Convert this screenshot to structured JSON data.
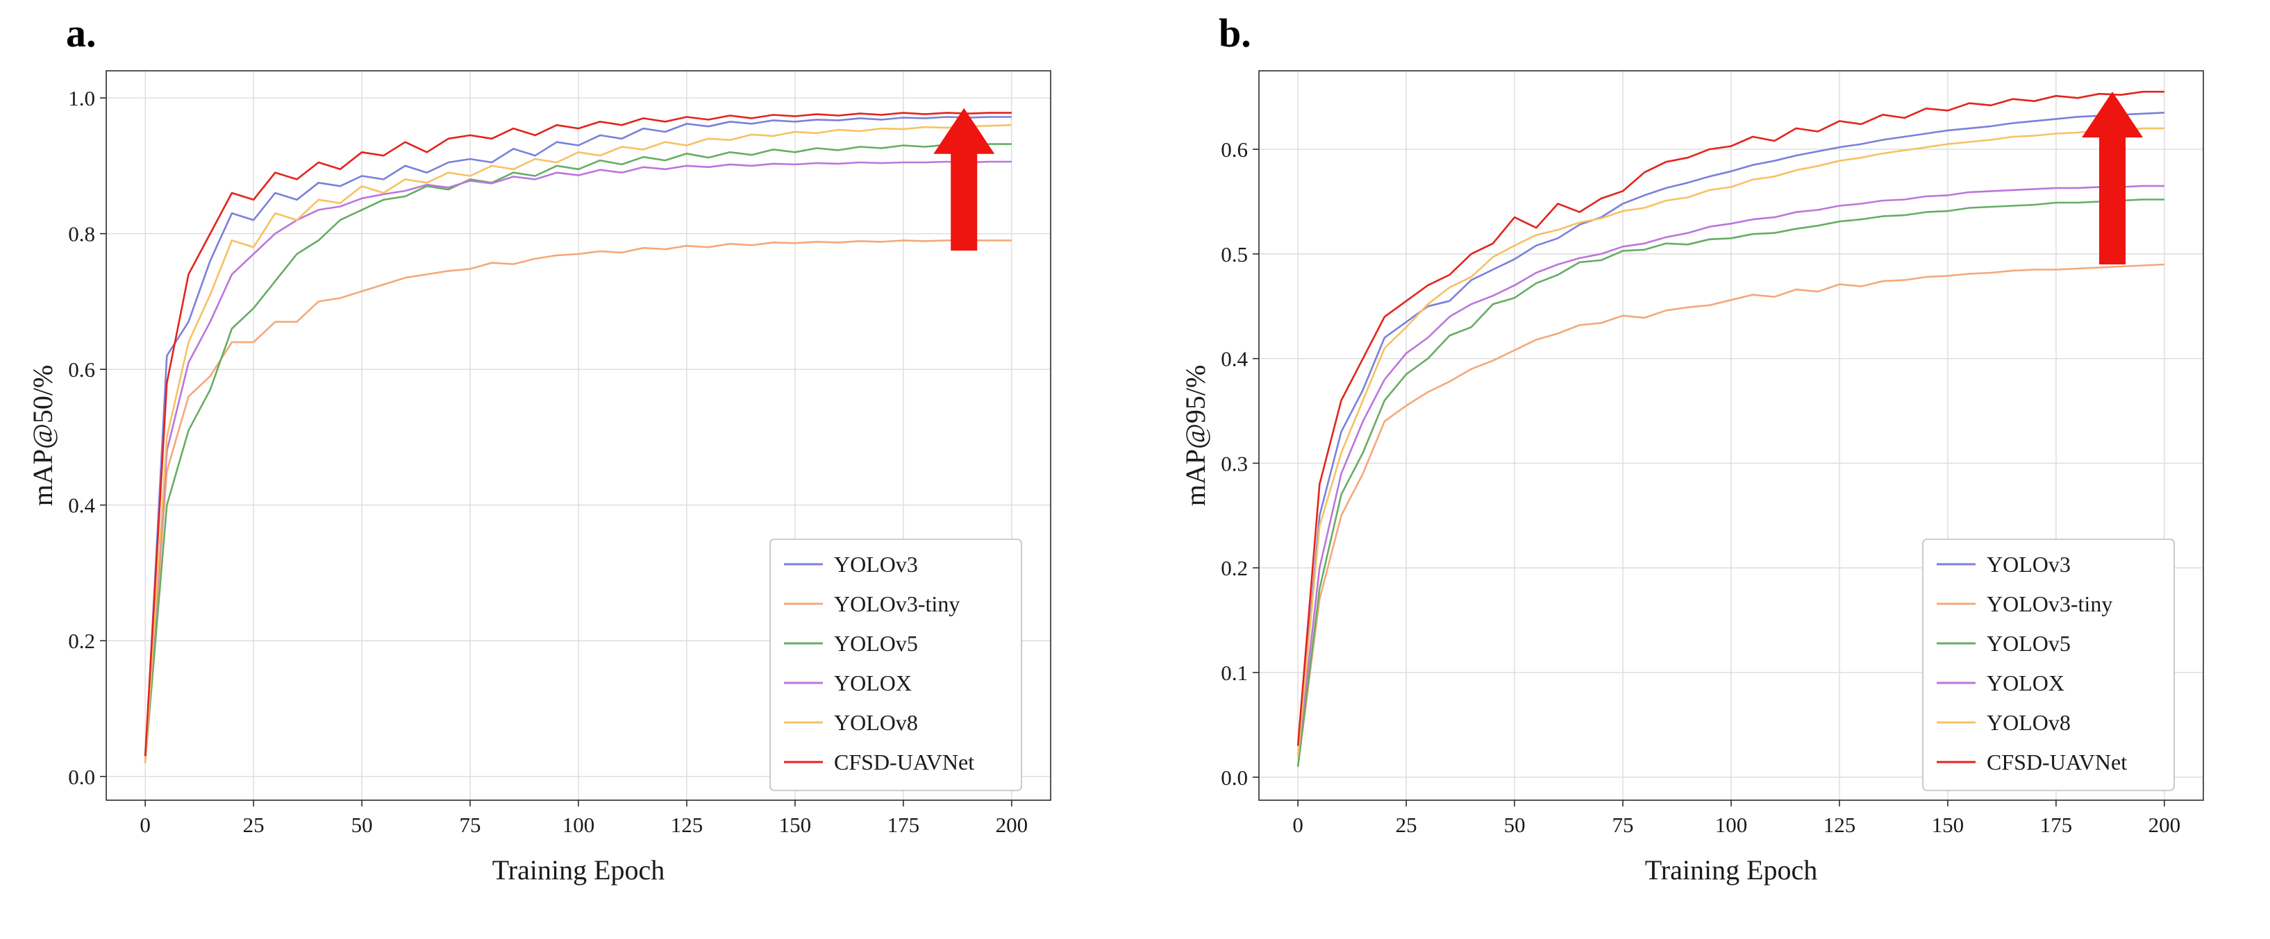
{
  "figure_title": "",
  "arrow_color": "#ee1410",
  "chart_data": [
    {
      "id": "a",
      "type": "line",
      "panel_label": "a.",
      "xlabel": "Training Epoch",
      "ylabel": "mAP@50/%",
      "xlim": [
        -9,
        209
      ],
      "ylim": [
        -0.035,
        1.04
      ],
      "xticks": [
        0,
        25,
        50,
        75,
        100,
        125,
        150,
        175,
        200
      ],
      "yticks": [
        0.0,
        0.2,
        0.4,
        0.6,
        0.8,
        1.0
      ],
      "grid": true,
      "legend_position": "lower right",
      "arrow": {
        "x": 189,
        "y_from": 0.775,
        "y_to": 0.985
      },
      "x": [
        0,
        5,
        10,
        15,
        20,
        25,
        30,
        35,
        40,
        45,
        50,
        55,
        60,
        65,
        70,
        75,
        80,
        85,
        90,
        95,
        100,
        105,
        110,
        115,
        120,
        125,
        130,
        135,
        140,
        145,
        150,
        155,
        160,
        165,
        170,
        175,
        180,
        185,
        190,
        195,
        200
      ],
      "series": [
        {
          "name": "YOLOv3",
          "color": "#7a80db",
          "values": [
            0.02,
            0.62,
            0.67,
            0.76,
            0.83,
            0.82,
            0.86,
            0.85,
            0.875,
            0.87,
            0.885,
            0.88,
            0.9,
            0.89,
            0.905,
            0.91,
            0.905,
            0.925,
            0.915,
            0.935,
            0.93,
            0.945,
            0.94,
            0.955,
            0.95,
            0.962,
            0.958,
            0.965,
            0.962,
            0.967,
            0.965,
            0.968,
            0.967,
            0.97,
            0.968,
            0.971,
            0.97,
            0.972,
            0.971,
            0.972,
            0.972
          ]
        },
        {
          "name": "YOLOv3-tiny",
          "color": "#f5a878",
          "values": [
            0.02,
            0.45,
            0.56,
            0.59,
            0.64,
            0.64,
            0.67,
            0.67,
            0.7,
            0.705,
            0.715,
            0.725,
            0.735,
            0.74,
            0.745,
            0.748,
            0.757,
            0.755,
            0.763,
            0.768,
            0.77,
            0.774,
            0.772,
            0.779,
            0.777,
            0.782,
            0.78,
            0.785,
            0.783,
            0.787,
            0.786,
            0.788,
            0.787,
            0.789,
            0.788,
            0.79,
            0.789,
            0.79,
            0.79,
            0.79,
            0.79
          ]
        },
        {
          "name": "YOLOv5",
          "color": "#66ad64",
          "values": [
            0.02,
            0.4,
            0.51,
            0.57,
            0.66,
            0.69,
            0.73,
            0.77,
            0.79,
            0.82,
            0.835,
            0.85,
            0.855,
            0.87,
            0.865,
            0.88,
            0.875,
            0.89,
            0.885,
            0.9,
            0.895,
            0.908,
            0.902,
            0.913,
            0.908,
            0.918,
            0.912,
            0.92,
            0.916,
            0.924,
            0.92,
            0.926,
            0.923,
            0.928,
            0.926,
            0.93,
            0.928,
            0.931,
            0.93,
            0.932,
            0.932
          ]
        },
        {
          "name": "YOLOX",
          "color": "#bb76dd",
          "values": [
            0.02,
            0.48,
            0.61,
            0.67,
            0.74,
            0.77,
            0.8,
            0.82,
            0.835,
            0.84,
            0.852,
            0.858,
            0.863,
            0.872,
            0.868,
            0.878,
            0.874,
            0.884,
            0.88,
            0.89,
            0.886,
            0.894,
            0.89,
            0.898,
            0.895,
            0.9,
            0.898,
            0.902,
            0.9,
            0.903,
            0.902,
            0.904,
            0.903,
            0.905,
            0.904,
            0.905,
            0.905,
            0.906,
            0.905,
            0.906,
            0.906
          ]
        },
        {
          "name": "YOLOv8",
          "color": "#f7c163",
          "values": [
            0.02,
            0.5,
            0.64,
            0.71,
            0.79,
            0.78,
            0.83,
            0.82,
            0.85,
            0.845,
            0.87,
            0.86,
            0.88,
            0.875,
            0.89,
            0.885,
            0.9,
            0.895,
            0.91,
            0.905,
            0.92,
            0.915,
            0.928,
            0.924,
            0.935,
            0.93,
            0.94,
            0.938,
            0.946,
            0.944,
            0.95,
            0.948,
            0.953,
            0.951,
            0.955,
            0.954,
            0.957,
            0.956,
            0.958,
            0.959,
            0.96
          ]
        },
        {
          "name": "CFSD-UAVNet",
          "color": "#e4231c",
          "values": [
            0.03,
            0.58,
            0.74,
            0.8,
            0.86,
            0.85,
            0.89,
            0.88,
            0.905,
            0.895,
            0.92,
            0.915,
            0.935,
            0.92,
            0.94,
            0.945,
            0.94,
            0.955,
            0.945,
            0.96,
            0.955,
            0.965,
            0.96,
            0.97,
            0.965,
            0.972,
            0.968,
            0.974,
            0.97,
            0.975,
            0.973,
            0.976,
            0.974,
            0.977,
            0.975,
            0.978,
            0.976,
            0.978,
            0.977,
            0.978,
            0.978
          ]
        }
      ]
    },
    {
      "id": "b",
      "type": "line",
      "panel_label": "b.",
      "xlabel": "Training Epoch",
      "ylabel": "mAP@95/%",
      "xlim": [
        -9,
        209
      ],
      "ylim": [
        -0.022,
        0.675
      ],
      "xticks": [
        0,
        25,
        50,
        75,
        100,
        125,
        150,
        175,
        200
      ],
      "yticks": [
        0.0,
        0.1,
        0.2,
        0.3,
        0.4,
        0.5,
        0.6
      ],
      "grid": true,
      "legend_position": "lower right",
      "arrow": {
        "x": 188,
        "y_from": 0.49,
        "y_to": 0.655
      },
      "x": [
        0,
        5,
        10,
        15,
        20,
        25,
        30,
        35,
        40,
        45,
        50,
        55,
        60,
        65,
        70,
        75,
        80,
        85,
        90,
        95,
        100,
        105,
        110,
        115,
        120,
        125,
        130,
        135,
        140,
        145,
        150,
        155,
        160,
        165,
        170,
        175,
        180,
        185,
        190,
        195,
        200
      ],
      "series": [
        {
          "name": "YOLOv3",
          "color": "#7a80db",
          "values": [
            0.02,
            0.25,
            0.33,
            0.37,
            0.42,
            0.435,
            0.45,
            0.455,
            0.475,
            0.485,
            0.495,
            0.508,
            0.515,
            0.528,
            0.535,
            0.548,
            0.556,
            0.563,
            0.568,
            0.574,
            0.579,
            0.585,
            0.589,
            0.594,
            0.598,
            0.602,
            0.605,
            0.609,
            0.612,
            0.615,
            0.618,
            0.62,
            0.622,
            0.625,
            0.627,
            0.629,
            0.631,
            0.632,
            0.633,
            0.634,
            0.635
          ]
        },
        {
          "name": "YOLOv3-tiny",
          "color": "#f5a878",
          "values": [
            0.01,
            0.17,
            0.25,
            0.29,
            0.34,
            0.355,
            0.368,
            0.378,
            0.39,
            0.398,
            0.408,
            0.418,
            0.424,
            0.432,
            0.434,
            0.441,
            0.439,
            0.446,
            0.449,
            0.451,
            0.456,
            0.461,
            0.459,
            0.466,
            0.464,
            0.471,
            0.469,
            0.474,
            0.475,
            0.478,
            0.479,
            0.481,
            0.482,
            0.484,
            0.485,
            0.485,
            0.486,
            0.487,
            0.488,
            0.489,
            0.49
          ]
        },
        {
          "name": "YOLOv5",
          "color": "#66ad64",
          "values": [
            0.01,
            0.18,
            0.27,
            0.31,
            0.36,
            0.385,
            0.4,
            0.422,
            0.43,
            0.452,
            0.458,
            0.472,
            0.48,
            0.492,
            0.494,
            0.503,
            0.504,
            0.51,
            0.509,
            0.514,
            0.515,
            0.519,
            0.52,
            0.524,
            0.527,
            0.531,
            0.533,
            0.536,
            0.537,
            0.54,
            0.541,
            0.544,
            0.545,
            0.546,
            0.547,
            0.549,
            0.549,
            0.55,
            0.551,
            0.552,
            0.552
          ]
        },
        {
          "name": "YOLOX",
          "color": "#bb76dd",
          "values": [
            0.02,
            0.2,
            0.29,
            0.34,
            0.38,
            0.405,
            0.42,
            0.44,
            0.452,
            0.46,
            0.47,
            0.482,
            0.49,
            0.496,
            0.5,
            0.507,
            0.51,
            0.516,
            0.52,
            0.526,
            0.529,
            0.533,
            0.535,
            0.54,
            0.542,
            0.546,
            0.548,
            0.551,
            0.552,
            0.555,
            0.556,
            0.559,
            0.56,
            0.561,
            0.562,
            0.563,
            0.563,
            0.564,
            0.564,
            0.565,
            0.565
          ]
        },
        {
          "name": "YOLOv8",
          "color": "#f7c163",
          "values": [
            0.02,
            0.24,
            0.31,
            0.36,
            0.41,
            0.43,
            0.452,
            0.468,
            0.478,
            0.497,
            0.508,
            0.518,
            0.523,
            0.53,
            0.534,
            0.541,
            0.544,
            0.551,
            0.554,
            0.561,
            0.564,
            0.571,
            0.574,
            0.58,
            0.584,
            0.589,
            0.592,
            0.596,
            0.599,
            0.602,
            0.605,
            0.607,
            0.609,
            0.612,
            0.613,
            0.615,
            0.616,
            0.618,
            0.618,
            0.62,
            0.62
          ]
        },
        {
          "name": "CFSD-UAVNet",
          "color": "#e4231c",
          "values": [
            0.03,
            0.28,
            0.36,
            0.4,
            0.44,
            0.455,
            0.47,
            0.48,
            0.5,
            0.51,
            0.535,
            0.525,
            0.548,
            0.54,
            0.553,
            0.56,
            0.578,
            0.588,
            0.592,
            0.6,
            0.603,
            0.612,
            0.608,
            0.62,
            0.617,
            0.627,
            0.624,
            0.633,
            0.63,
            0.639,
            0.637,
            0.644,
            0.642,
            0.648,
            0.646,
            0.651,
            0.649,
            0.653,
            0.652,
            0.655,
            0.655
          ]
        }
      ]
    }
  ]
}
